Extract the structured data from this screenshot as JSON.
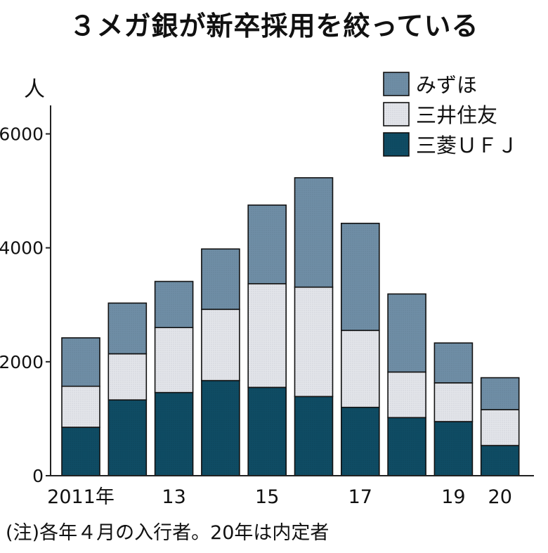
{
  "title": "３メガ銀が新卒採用を絞っている",
  "note": "(注)各年４月の入行者。20年は内定者",
  "colors": {
    "mizuho": "#6f8ea6",
    "smbc": "#e3e5ea",
    "mufg": "#0f4c64",
    "axis": "#222222"
  },
  "chart_data": {
    "type": "bar",
    "stacked": true,
    "ylabel": "人",
    "ylim": [
      0,
      6500
    ],
    "yticks": [
      0,
      2000,
      4000,
      6000
    ],
    "categories": [
      "2011",
      "2012",
      "2013",
      "2014",
      "2015",
      "2016",
      "2017",
      "2018",
      "2019",
      "2020"
    ],
    "xtick_labels": [
      "2011年",
      "",
      "13",
      "",
      "15",
      "",
      "17",
      "",
      "19",
      "20"
    ],
    "series": [
      {
        "name": "三菱ＵＦＪ",
        "key": "mufg",
        "values": [
          850,
          1330,
          1460,
          1670,
          1550,
          1390,
          1200,
          1020,
          950,
          530
        ]
      },
      {
        "name": "三井住友",
        "key": "smbc",
        "values": [
          720,
          810,
          1140,
          1250,
          1820,
          1920,
          1350,
          800,
          680,
          630
        ]
      },
      {
        "name": "みずほ",
        "key": "mizuho",
        "values": [
          850,
          890,
          810,
          1060,
          1380,
          1920,
          1880,
          1370,
          700,
          560
        ]
      }
    ],
    "legend_order": [
      "みずほ",
      "三井住友",
      "三菱ＵＦＪ"
    ],
    "legend_position": "top-right",
    "grid": false
  }
}
